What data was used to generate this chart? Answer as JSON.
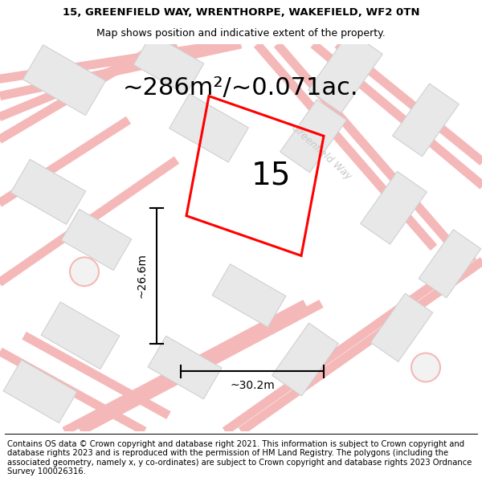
{
  "title_line1": "15, GREENFIELD WAY, WRENTHORPE, WAKEFIELD, WF2 0TN",
  "title_line2": "Map shows position and indicative extent of the property.",
  "area_text": "~286m²/~0.071ac.",
  "property_number": "15",
  "dim_width": "~30.2m",
  "dim_height": "~26.6m",
  "footer": "Contains OS data © Crown copyright and database right 2021. This information is subject to Crown copyright and database rights 2023 and is reproduced with the permission of HM Land Registry. The polygons (including the associated geometry, namely x, y co-ordinates) are subject to Crown copyright and database rights 2023 Ordnance Survey 100026316.",
  "bg_color": "#f2f2f2",
  "plot_color": "#ff0000",
  "road_label": "Greenfield Way",
  "building_fill": "#e8e8e8",
  "building_edge": "#d0d0d0",
  "road_color": "#f5b8b8",
  "road_lw": 8,
  "plot_lw": 2.2,
  "title_fontsize": 9.5,
  "subtitle_fontsize": 9,
  "area_fontsize": 22,
  "dim_fontsize": 10,
  "number_fontsize": 28,
  "footer_fontsize": 7.2,
  "road_label_color": "#c8c8c8",
  "road_label_fontsize": 9
}
